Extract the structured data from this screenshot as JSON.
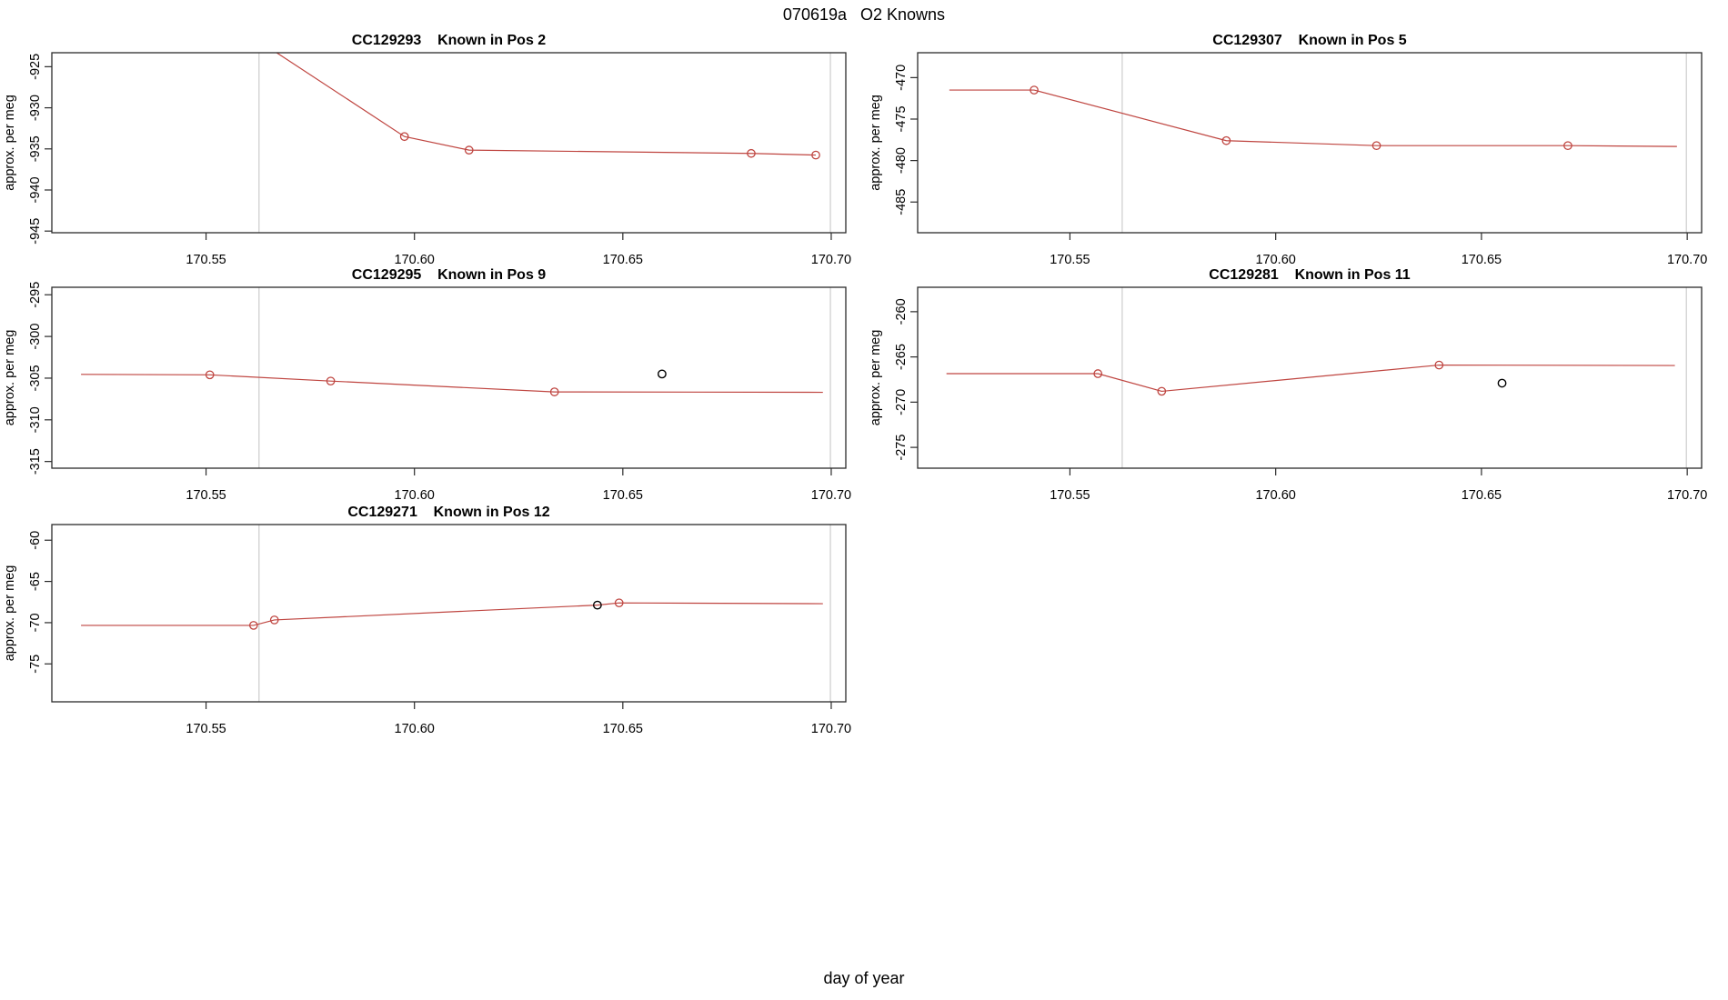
{
  "title": "070619a   O2 Knowns",
  "xlabel": "day of year",
  "chart_data": {
    "type": "line",
    "ylabel": "approx. per meg",
    "legend": "none",
    "grid": "off",
    "colors": {
      "series": "#bf4540",
      "outlier": "#000000",
      "guide_line": "#d4d4d4",
      "axis": "#2b2b2b"
    },
    "x_axis": {
      "lim": [
        170.513,
        170.7035
      ],
      "ticks": [
        170.55,
        170.6,
        170.65,
        170.7
      ]
    },
    "guide_x": [
      170.5627,
      170.6998
    ],
    "panels": [
      {
        "id": "CC129293",
        "pos_label": "Known in Pos 2",
        "title": "CC129293    Known in Pos 2",
        "row": 0,
        "col": 0,
        "ylim": [
          -945.2,
          -923.3
        ],
        "yticks": [
          -925,
          -930,
          -935,
          -940,
          -945
        ],
        "line": [
          [
            170.539,
            -914.0
          ],
          [
            170.5976,
            -933.5
          ],
          [
            170.6131,
            -935.15
          ],
          [
            170.6808,
            -935.55
          ],
          [
            170.6963,
            -935.75
          ]
        ],
        "points": [
          [
            170.5976,
            -933.5
          ],
          [
            170.6131,
            -935.15
          ],
          [
            170.6808,
            -935.55
          ],
          [
            170.6963,
            -935.75
          ]
        ],
        "outliers": []
      },
      {
        "id": "CC129307",
        "pos_label": "Known in Pos 5",
        "title": "CC129307    Known in Pos 5",
        "row": 0,
        "col": 1,
        "ylim": [
          -488.7,
          -467.0
        ],
        "yticks": [
          -470,
          -475,
          -480,
          -485
        ],
        "line": [
          [
            170.5207,
            -471.5
          ],
          [
            170.5413,
            -471.5
          ],
          [
            170.588,
            -477.6
          ],
          [
            170.6245,
            -478.2
          ],
          [
            170.671,
            -478.2
          ],
          [
            170.6975,
            -478.3
          ]
        ],
        "points": [
          [
            170.5413,
            -471.5
          ],
          [
            170.588,
            -477.6
          ],
          [
            170.6245,
            -478.2
          ],
          [
            170.671,
            -478.2
          ]
        ],
        "outliers": []
      },
      {
        "id": "CC129295",
        "pos_label": "Known in Pos 9",
        "title": "CC129295    Known in Pos 9",
        "row": 1,
        "col": 0,
        "ylim": [
          -315.8,
          -294.1
        ],
        "yticks": [
          -295,
          -300,
          -305,
          -310,
          -315
        ],
        "line": [
          [
            170.52,
            -304.55
          ],
          [
            170.5509,
            -304.6
          ],
          [
            170.5799,
            -305.35
          ],
          [
            170.6336,
            -306.65
          ],
          [
            170.698,
            -306.7
          ]
        ],
        "points": [
          [
            170.5509,
            -304.6
          ],
          [
            170.5799,
            -305.35
          ],
          [
            170.6336,
            -306.65
          ]
        ],
        "outliers": [
          [
            170.6594,
            -304.5
          ]
        ]
      },
      {
        "id": "CC129281",
        "pos_label": "Known in Pos 11",
        "title": "CC129281    Known in Pos 11",
        "row": 1,
        "col": 1,
        "ylim": [
          -277.3,
          -257.3
        ],
        "yticks": [
          -260,
          -265,
          -270,
          -275
        ],
        "line": [
          [
            170.52,
            -266.85
          ],
          [
            170.5568,
            -266.85
          ],
          [
            170.5723,
            -268.8
          ],
          [
            170.6397,
            -265.9
          ],
          [
            170.697,
            -265.95
          ]
        ],
        "points": [
          [
            170.5568,
            -266.85
          ],
          [
            170.5723,
            -268.8
          ],
          [
            170.6397,
            -265.9
          ]
        ],
        "outliers": [
          [
            170.655,
            -267.9
          ]
        ]
      },
      {
        "id": "CC129271",
        "pos_label": "Known in Pos 12",
        "title": "CC129271    Known in Pos 12",
        "row": 2,
        "col": 0,
        "ylim": [
          -79.6,
          -58.1
        ],
        "yticks": [
          -60,
          -65,
          -70,
          -75
        ],
        "line": [
          [
            170.52,
            -70.33
          ],
          [
            170.5614,
            -70.33
          ],
          [
            170.5664,
            -69.67
          ],
          [
            170.6439,
            -67.87
          ],
          [
            170.6491,
            -67.6
          ],
          [
            170.698,
            -67.7
          ]
        ],
        "points": [
          [
            170.5614,
            -70.33
          ],
          [
            170.5664,
            -69.67
          ],
          [
            170.6491,
            -67.6
          ]
        ],
        "outliers": [
          [
            170.6439,
            -67.87
          ]
        ]
      }
    ]
  }
}
